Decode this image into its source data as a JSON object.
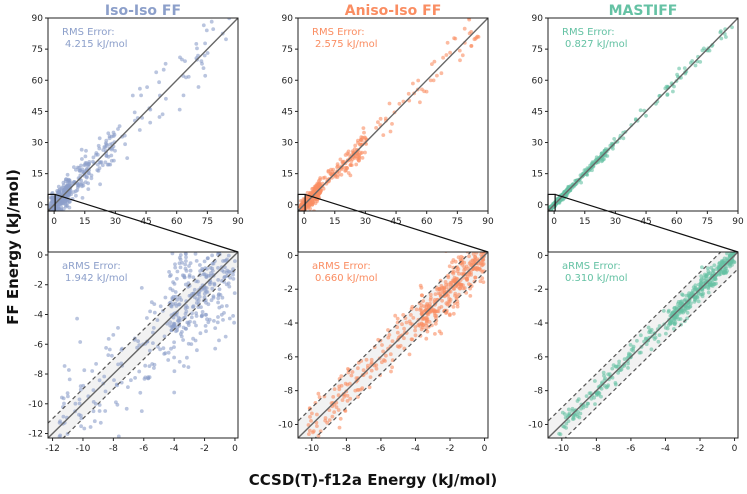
{
  "figure": {
    "ylabel": "FF Energy (kJ/mol)",
    "xlabel": "CCSD(T)-f12a Energy (kJ/mol)"
  },
  "chart_data": [
    {
      "type": "scatter",
      "method": "Iso-Iso FF",
      "title": "Iso-Iso FF",
      "color": "#8c9fca",
      "row": "top",
      "xlim": [
        -3,
        90
      ],
      "ylim": [
        -3,
        90
      ],
      "ticks": [
        "0",
        "15",
        "30",
        "45",
        "60",
        "75",
        "90"
      ],
      "annotation_label": "RMS Error:",
      "annotation_value": "4.215 kJ/mol",
      "rms_error": 4.215,
      "scatter_sd": 5.5,
      "has_band": false
    },
    {
      "type": "scatter",
      "method": "Aniso-Iso FF",
      "title": "Aniso-Iso FF",
      "color": "#fa8d62",
      "row": "top",
      "xlim": [
        -3,
        90
      ],
      "ylim": [
        -3,
        90
      ],
      "ticks": [
        "0",
        "15",
        "30",
        "45",
        "60",
        "75",
        "90"
      ],
      "annotation_label": "RMS Error:",
      "annotation_value": "2.575 kJ/mol",
      "rms_error": 2.575,
      "scatter_sd": 3.4,
      "has_band": false
    },
    {
      "type": "scatter",
      "method": "MASTIFF",
      "title": "MASTIFF",
      "color": "#65c2a4",
      "row": "top",
      "xlim": [
        -3,
        90
      ],
      "ylim": [
        -3,
        90
      ],
      "ticks": [
        "0",
        "15",
        "30",
        "45",
        "60",
        "75",
        "90"
      ],
      "annotation_label": "RMS Error:",
      "annotation_value": "0.827 kJ/mol",
      "rms_error": 0.827,
      "scatter_sd": 1.1,
      "has_band": false
    },
    {
      "type": "scatter",
      "method": "Iso-Iso FF",
      "color": "#8c9fca",
      "row": "bottom",
      "xlim": [
        -12.3,
        0.2
      ],
      "ylim": [
        -12.3,
        0.2
      ],
      "ticks": [
        "-12",
        "-10",
        "-8",
        "-6",
        "-4",
        "-2",
        "0"
      ],
      "annotation_label": "aRMS Error:",
      "annotation_value": "1.942 kJ/mol",
      "rms_error": 1.942,
      "scatter_sd": 2.1,
      "has_band": true,
      "band": 1
    },
    {
      "type": "scatter",
      "method": "Aniso-Iso FF",
      "color": "#fa8d62",
      "row": "bottom",
      "xlim": [
        -10.8,
        0.2
      ],
      "ylim": [
        -10.8,
        0.2
      ],
      "ticks": [
        "-10",
        "-8",
        "-6",
        "-4",
        "-2",
        "0"
      ],
      "annotation_label": "aRMS Error:",
      "annotation_value": "0.660 kJ/mol",
      "rms_error": 0.66,
      "scatter_sd": 0.7,
      "has_band": true,
      "band": 1
    },
    {
      "type": "scatter",
      "method": "MASTIFF",
      "color": "#65c2a4",
      "row": "bottom",
      "xlim": [
        -10.8,
        0.2
      ],
      "ylim": [
        -10.8,
        0.2
      ],
      "ticks": [
        "-10",
        "-8",
        "-6",
        "-4",
        "-2",
        "0"
      ],
      "annotation_label": "aRMS Error:",
      "annotation_value": "0.310 kJ/mol",
      "rms_error": 0.31,
      "scatter_sd": 0.33,
      "has_band": true,
      "band": 1
    }
  ]
}
